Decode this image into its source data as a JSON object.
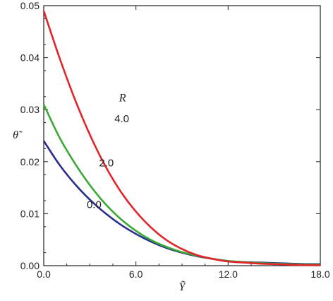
{
  "chart_data": {
    "type": "line",
    "title": "",
    "xlabel": "Ỹ",
    "ylabel": "θ̃",
    "xlim": [
      0,
      18
    ],
    "ylim": [
      0,
      0.05
    ],
    "xticks": [
      0,
      6,
      12,
      18
    ],
    "xtick_labels": [
      "0.0",
      "6.0",
      "12.0",
      "18.0"
    ],
    "yticks": [
      0,
      0.01,
      0.02,
      0.03,
      0.04,
      0.05
    ],
    "ytick_labels": [
      "0.00",
      "0.01",
      "0.02",
      "0.03",
      "0.04",
      "0.05"
    ],
    "grid": false,
    "legend_title": "R",
    "series": [
      {
        "name": "0.0",
        "color": "#2b2f8c",
        "x": [
          0,
          1,
          2,
          3,
          4,
          5,
          6,
          7,
          8,
          9,
          10,
          11,
          12,
          13,
          14,
          15,
          16,
          17,
          18
        ],
        "y": [
          0.024,
          0.0195,
          0.0158,
          0.0127,
          0.0101,
          0.0079,
          0.0061,
          0.0046,
          0.0034,
          0.0025,
          0.0018,
          0.0013,
          0.0009,
          0.0007,
          0.0006,
          0.0005,
          0.0004,
          0.0003,
          0.0003
        ]
      },
      {
        "name": "2.0",
        "color": "#3aaa35",
        "x": [
          0,
          1,
          2,
          3,
          4,
          5,
          6,
          7,
          8,
          9,
          10,
          11,
          12,
          13,
          14,
          15,
          16,
          17,
          18
        ],
        "y": [
          0.031,
          0.0248,
          0.0198,
          0.0155,
          0.0119,
          0.009,
          0.0067,
          0.0049,
          0.0036,
          0.0026,
          0.0019,
          0.0013,
          0.0009,
          0.0007,
          0.0005,
          0.0004,
          0.0003,
          0.0002,
          0.0002
        ]
      },
      {
        "name": "4.0",
        "color": "#e0262a",
        "x": [
          0,
          1,
          2,
          3,
          4,
          5,
          6,
          7,
          8,
          9,
          10,
          11,
          12,
          13,
          14,
          15,
          16,
          17,
          18
        ],
        "y": [
          0.049,
          0.0402,
          0.0322,
          0.0252,
          0.0192,
          0.0143,
          0.0104,
          0.0073,
          0.0049,
          0.0032,
          0.002,
          0.0013,
          0.0008,
          0.0006,
          0.0004,
          0.0003,
          0.0002,
          0.0001,
          0.0001
        ]
      }
    ],
    "annotations": [
      {
        "text": "R",
        "x": 4.9,
        "y": 0.0316,
        "style": "italic"
      },
      {
        "text": "4.0",
        "x": 4.6,
        "y": 0.0276
      },
      {
        "text": "2.0",
        "x": 3.6,
        "y": 0.0191
      },
      {
        "text": "0.0",
        "x": 2.8,
        "y": 0.0111
      }
    ]
  }
}
